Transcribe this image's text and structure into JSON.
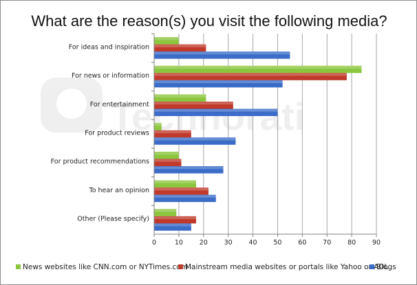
{
  "chart_data": {
    "type": "bar",
    "orientation": "horizontal",
    "title": "What are the reason(s) you visit the following media?",
    "xlabel": "",
    "ylabel": "",
    "xlim": [
      0,
      90
    ],
    "xticks": [
      0,
      10,
      20,
      30,
      40,
      50,
      60,
      70,
      80,
      90
    ],
    "grid": true,
    "legend_position": "bottom",
    "watermark": "Technorati",
    "categories": [
      "For ideas and inspiration",
      "For news or information",
      "For entertainment",
      "For product reviews",
      "For product recommendations",
      "To hear an opinion",
      "Other (Please specify)"
    ],
    "series": [
      {
        "name": "News websites like CNN.com or NYTimes.com",
        "color": "#8cc63e",
        "values": [
          10,
          84,
          21,
          3,
          10,
          17,
          9
        ]
      },
      {
        "name": "Mainstream media websites or portals like Yahoo or AOL",
        "color": "#c0392b",
        "values": [
          21,
          78,
          32,
          15,
          11,
          22,
          17
        ]
      },
      {
        "name": "Blogs",
        "color": "#3a6cc8",
        "values": [
          55,
          52,
          50,
          33,
          28,
          25,
          15
        ]
      }
    ]
  }
}
